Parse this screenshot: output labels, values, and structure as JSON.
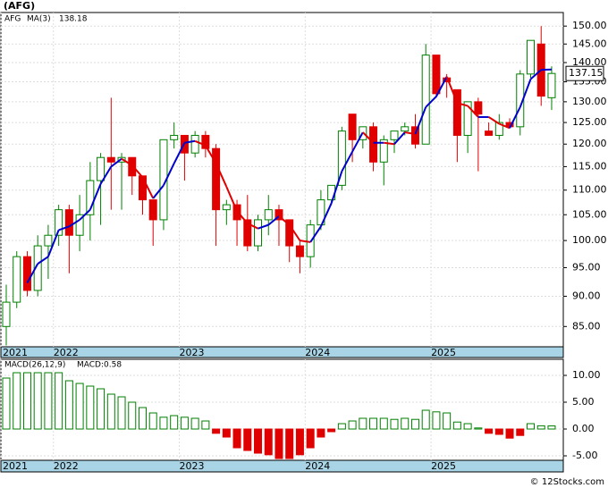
{
  "chart_data": [
    {
      "type": "candlestick",
      "title": "(AFG)",
      "symbol": "AFG",
      "open": [
        85,
        89,
        97,
        91,
        99,
        101,
        106,
        101,
        105,
        112,
        117,
        116,
        117,
        113,
        108,
        104,
        121,
        122,
        118,
        122,
        119,
        106,
        107,
        104,
        99,
        104,
        106,
        104,
        99,
        97,
        103,
        108,
        111,
        127,
        121,
        124,
        116,
        121,
        123,
        124,
        120,
        142,
        136,
        133,
        122,
        130,
        123,
        122,
        125,
        124,
        137,
        145,
        131
      ],
      "high": [
        92,
        98,
        98,
        101,
        103,
        107,
        107,
        109,
        116,
        118,
        131,
        118,
        117,
        113,
        108,
        121,
        125,
        122,
        123,
        123,
        120,
        108,
        108,
        109,
        105,
        109,
        107,
        104,
        100,
        104,
        110,
        111,
        124,
        127,
        124,
        125,
        122,
        123,
        125,
        127,
        145,
        142,
        137,
        133,
        130,
        131,
        125,
        127,
        126,
        138,
        146,
        150,
        139
      ],
      "low": [
        82,
        88,
        90,
        90,
        93,
        99,
        94,
        98,
        100,
        103,
        106,
        106,
        109,
        105,
        99,
        102,
        119,
        112,
        117,
        117,
        99,
        103,
        99,
        98,
        98,
        101,
        99,
        96,
        94,
        95,
        102,
        107,
        110,
        116,
        119,
        114,
        111,
        118,
        122,
        119,
        120,
        131,
        131,
        116,
        118,
        114,
        122,
        121,
        124,
        122,
        136,
        129,
        128
      ],
      "close": [
        89,
        97,
        91,
        99,
        101,
        106,
        101,
        105,
        112,
        117,
        116,
        117,
        113,
        108,
        104,
        121,
        122,
        118,
        122,
        119,
        106,
        107,
        104,
        99,
        104,
        106,
        104,
        99,
        97,
        103,
        108,
        111,
        123,
        121,
        124,
        116,
        121,
        123,
        124,
        120,
        142,
        132,
        135,
        122,
        130,
        127,
        122,
        125,
        124,
        137,
        146,
        131.4,
        137.15
      ],
      "ma": {
        "name": "MA(3)",
        "up_color": "#0000cc",
        "down_color": "#e00000",
        "values": [
          null,
          null,
          92.3,
          95.7,
          97.0,
          102.0,
          102.7,
          104.0,
          106.0,
          111.3,
          115.0,
          116.7,
          115.3,
          112.7,
          108.3,
          111.0,
          115.7,
          120.3,
          120.7,
          119.7,
          115.7,
          110.7,
          105.7,
          103.3,
          102.3,
          103.0,
          104.7,
          103.0,
          100.0,
          99.7,
          102.7,
          107.3,
          114.0,
          118.3,
          122.7,
          120.3,
          120.3,
          120.0,
          122.7,
          122.3,
          128.7,
          131.3,
          136.3,
          129.7,
          129.0,
          126.3,
          126.3,
          124.7,
          123.7,
          128.7,
          135.7,
          138.1,
          138.18
        ]
      },
      "up_color": "#008000",
      "down_color": "#e00000",
      "log_scale": true,
      "grid": true,
      "ylim": [
        81.8,
        153.9
      ],
      "yticks": [
        {
          "value": 150,
          "label": "150.00"
        },
        {
          "value": 145,
          "label": "145.00"
        },
        {
          "value": 140,
          "label": "140.00"
        },
        {
          "value": 135,
          "label": "135.00"
        },
        {
          "value": 130,
          "label": "130.00"
        },
        {
          "value": 125,
          "label": "125.00"
        },
        {
          "value": 120,
          "label": "120.00"
        },
        {
          "value": 115,
          "label": "115.00"
        },
        {
          "value": 110,
          "label": "110.00"
        },
        {
          "value": 105,
          "label": "105.00"
        },
        {
          "value": 100,
          "label": "100.00"
        },
        {
          "value": 95,
          "label": "95.00"
        },
        {
          "value": 90,
          "label": "90.00"
        },
        {
          "value": 85,
          "label": "85.00"
        }
      ],
      "xticks": [
        {
          "value": -0.5,
          "label": "2021"
        },
        {
          "value": 4.5,
          "label": "2022"
        },
        {
          "value": 16.5,
          "label": "2023"
        },
        {
          "value": 28.5,
          "label": "2024"
        },
        {
          "value": 40.5,
          "label": "2025"
        }
      ]
    },
    {
      "type": "macd",
      "name": "MACD(26,12,9)",
      "last_label": "MACD:0.58",
      "values": [
        9.5,
        10.5,
        10.5,
        10.5,
        10.5,
        10.5,
        9,
        8.5,
        8,
        7.5,
        6.5,
        6,
        5,
        4,
        3,
        2.2,
        2.5,
        2.2,
        2,
        1.5,
        -0.8,
        -1.5,
        -3.5,
        -4,
        -4.5,
        -4.8,
        -5.5,
        -5.5,
        -4.8,
        -3.5,
        -1.5,
        -0.5,
        1,
        1.5,
        2,
        2,
        2,
        1.8,
        2,
        1.8,
        3.5,
        3.2,
        3,
        1.3,
        1,
        0.2,
        -0.8,
        -1,
        -1.7,
        -1.2,
        1,
        0.6,
        0.58
      ],
      "up_color": "#008000",
      "down_color": "#e00000",
      "grid": true,
      "ylim": [
        -5.83,
        13
      ],
      "yticks": [
        {
          "value": 10,
          "label": "10.00"
        },
        {
          "value": 5,
          "label": "5.00"
        },
        {
          "value": 0,
          "label": "0.00"
        },
        {
          "value": -5,
          "label": "-5.00"
        }
      ],
      "xticks": [
        {
          "value": -0.5,
          "label": "2021"
        },
        {
          "value": 4.5,
          "label": "2022"
        },
        {
          "value": 16.5,
          "label": "2023"
        },
        {
          "value": 28.5,
          "label": "2024"
        },
        {
          "value": 40.5,
          "label": "2025"
        }
      ]
    }
  ],
  "footer": "© 12Stocks.com"
}
